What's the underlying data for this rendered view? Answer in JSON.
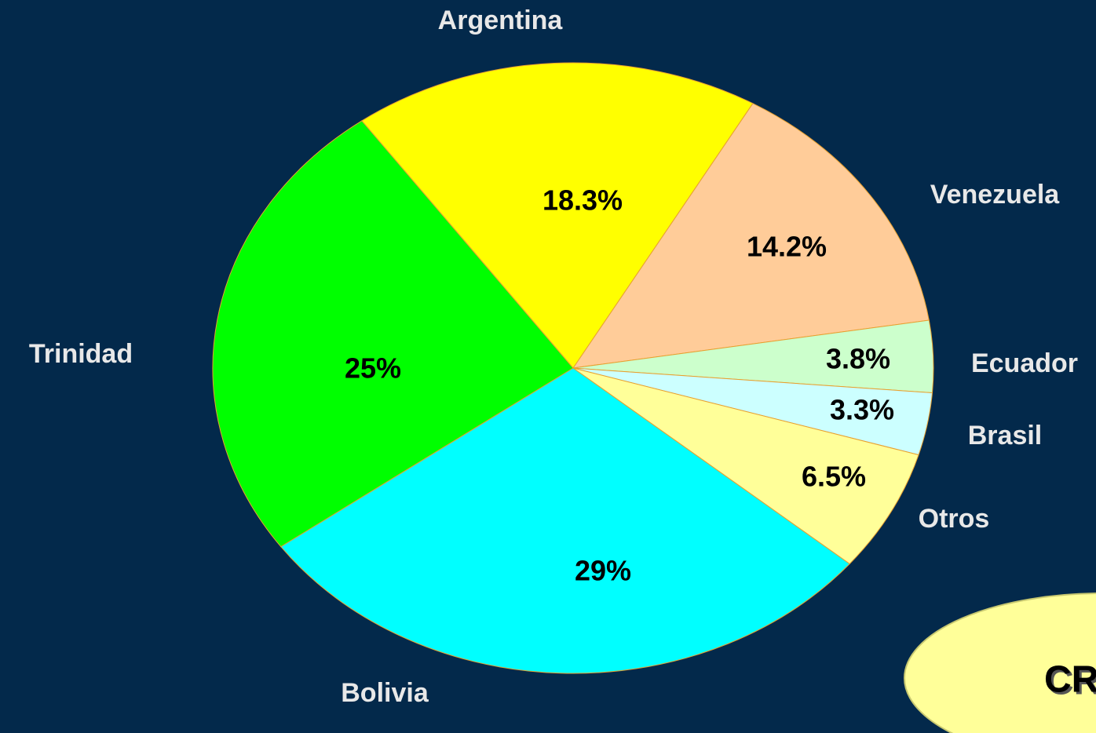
{
  "chart_data": {
    "type": "pie",
    "categories": [
      "Argentina",
      "Venezuela",
      "Ecuador",
      "Brasil",
      "Otros",
      "Bolivia",
      "Trinidad"
    ],
    "values": [
      18.3,
      14.2,
      3.8,
      3.3,
      6.5,
      29,
      25
    ],
    "value_labels": [
      "18.3%",
      "14.2%",
      "3.8%",
      "3.3%",
      "6.5%",
      "29%",
      "25%"
    ],
    "colors": [
      "#ffff00",
      "#ffcc99",
      "#ccffcc",
      "#ccffff",
      "#ffff99",
      "#00ffff",
      "#00ff00"
    ]
  },
  "callout": "CR"
}
